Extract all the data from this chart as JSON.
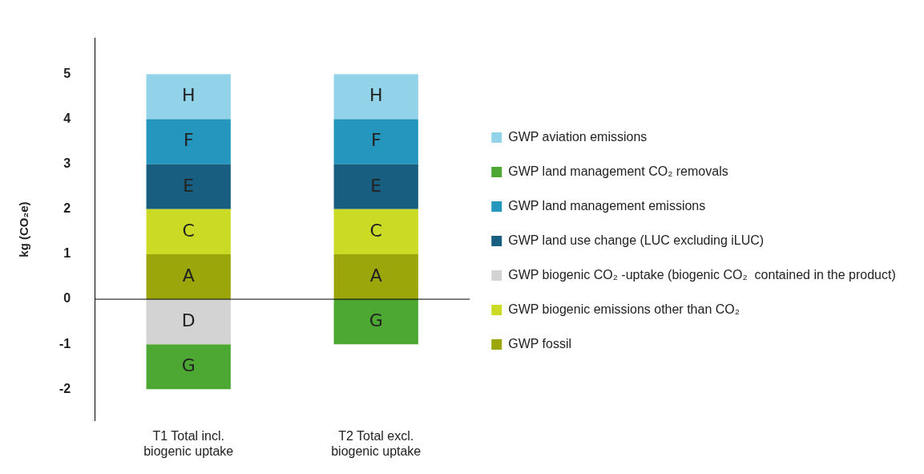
{
  "chart_data": {
    "type": "bar",
    "stacked": true,
    "ylabel": "kg (CO₂e)",
    "categories": [
      "T1 Total incl.\nbiogenic uptake",
      "T2 Total excl.\nbiogenic uptake"
    ],
    "series": [
      {
        "name": "GWP fossil",
        "color": "#9aa60a",
        "values": [
          1,
          1
        ],
        "value_labels": [
          "A",
          "A"
        ]
      },
      {
        "name": "GWP biogenic emissions other than CO₂",
        "color": "#cbdb25",
        "values": [
          1,
          1
        ],
        "value_labels": [
          "C",
          "C"
        ]
      },
      {
        "name": "GWP biogenic CO₂ -uptake (biogenic CO₂  contained in the product)",
        "color": "#d3d3d3",
        "values": [
          -1,
          null
        ],
        "value_labels": [
          "D",
          null
        ]
      },
      {
        "name": "GWP land use change (LUC excluding iLUC)",
        "color": "#175e80",
        "values": [
          1,
          1
        ],
        "value_labels": [
          "E",
          "E"
        ]
      },
      {
        "name": "GWP land management emissions",
        "color": "#2597be",
        "values": [
          1,
          1
        ],
        "value_labels": [
          "F",
          "F"
        ]
      },
      {
        "name": "GWP land management CO₂ removals",
        "color": "#4ca832",
        "values": [
          -1,
          -1
        ],
        "value_labels": [
          "G",
          "G"
        ]
      },
      {
        "name": "GWP aviation emissions",
        "color": "#92d3ea",
        "values": [
          1,
          1
        ],
        "value_labels": [
          "H",
          "H"
        ]
      }
    ],
    "ylim": [
      -2.7,
      5.8
    ],
    "yticks": [
      -2,
      -1,
      0,
      1,
      2,
      3,
      4,
      5
    ],
    "ref_lines": [
      {
        "axis": "y",
        "value": 0,
        "color": "#000000"
      }
    ],
    "grid": false,
    "legend": "right"
  }
}
